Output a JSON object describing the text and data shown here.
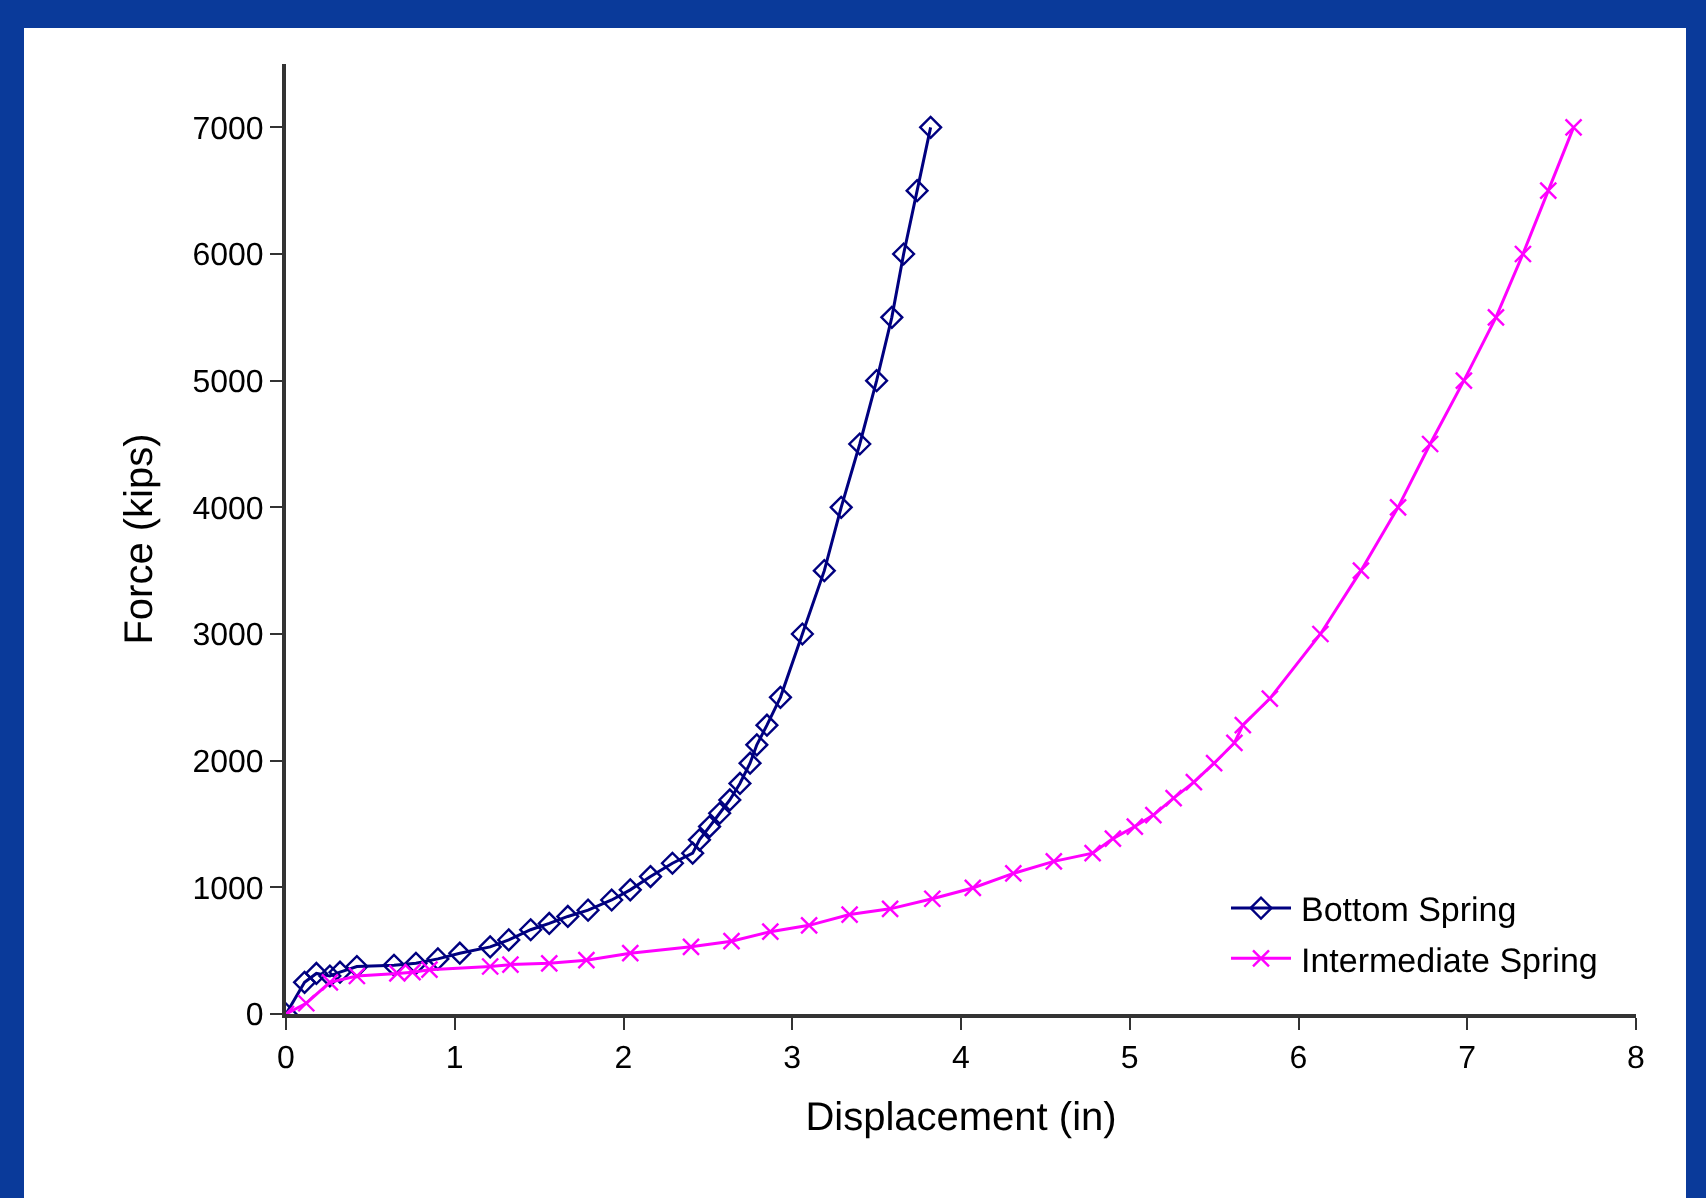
{
  "chart_data": {
    "type": "line",
    "xlabel": "Displacement (in)",
    "ylabel": "Force (kips)",
    "xlim": [
      0,
      8
    ],
    "xticks": [
      0,
      1,
      2,
      3,
      4,
      5,
      6,
      7,
      8
    ],
    "ylim": [
      0,
      7500
    ],
    "yticks": [
      0,
      1000,
      2000,
      3000,
      4000,
      5000,
      6000,
      7000
    ],
    "grid": false,
    "legend": "bottom right",
    "line_style": "solid",
    "series": [
      {
        "name": "Bottom Spring",
        "color": "#000080",
        "marker": "diamond",
        "x": [
          0,
          0.11,
          0.18,
          0.26,
          0.32,
          0.42,
          0.64,
          0.77,
          0.9,
          1.03,
          1.21,
          1.32,
          1.45,
          1.56,
          1.67,
          1.79,
          1.93,
          2.04,
          2.16,
          2.29,
          2.41,
          2.45,
          2.51,
          2.57,
          2.63,
          2.69,
          2.75,
          2.79,
          2.85,
          2.93,
          3.06,
          3.19,
          3.29,
          3.4,
          3.5,
          3.59,
          3.66,
          3.74,
          3.82
        ],
        "values": [
          0,
          250,
          320,
          300,
          330,
          375,
          385,
          400,
          435,
          480,
          530,
          585,
          665,
          715,
          770,
          820,
          900,
          980,
          1085,
          1190,
          1270,
          1375,
          1480,
          1585,
          1690,
          1820,
          1980,
          2125,
          2280,
          2500,
          3000,
          3500,
          4000,
          4500,
          5000,
          5500,
          6000,
          6500,
          7000
        ]
      },
      {
        "name": "Intermediate Spring",
        "color": "#ff00ff",
        "marker": "cross",
        "x": [
          0,
          0.12,
          0.26,
          0.42,
          0.66,
          0.75,
          0.85,
          1.21,
          1.33,
          1.56,
          1.78,
          2.04,
          2.4,
          2.64,
          2.87,
          3.1,
          3.34,
          3.58,
          3.83,
          4.07,
          4.31,
          4.55,
          4.78,
          4.9,
          5.03,
          5.14,
          5.26,
          5.38,
          5.5,
          5.62,
          5.67,
          5.83,
          6.13,
          6.37,
          6.59,
          6.78,
          6.98,
          7.17,
          7.33,
          7.48,
          7.63
        ],
        "values": [
          0,
          85,
          250,
          300,
          320,
          330,
          350,
          375,
          390,
          400,
          425,
          480,
          530,
          575,
          650,
          700,
          785,
          830,
          910,
          995,
          1110,
          1205,
          1270,
          1385,
          1480,
          1570,
          1705,
          1830,
          1980,
          2140,
          2280,
          2490,
          3000,
          3500,
          4000,
          4500,
          5000,
          5500,
          6000,
          6500,
          7000
        ]
      }
    ]
  }
}
